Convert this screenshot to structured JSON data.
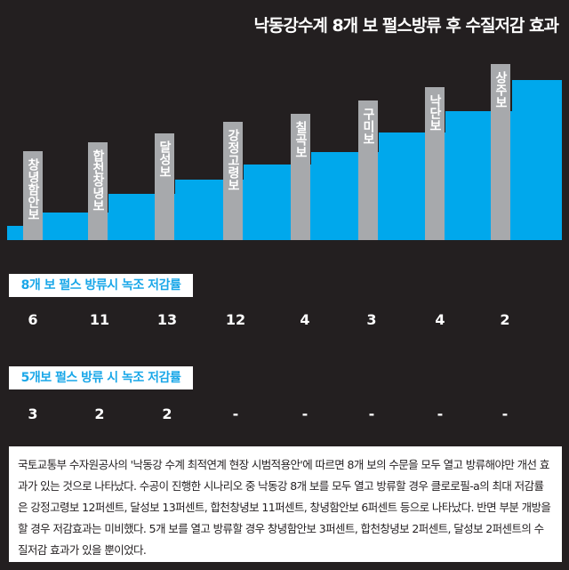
{
  "title": "낙동강수계 8개 보 펄스방류 후 수질저감 효과",
  "weirs": [
    "창녕함안보",
    "합천창녕보",
    "달성보",
    "강정고령보",
    "칠곡보",
    "구미보",
    "낙단보",
    "상주보"
  ],
  "rows": [
    {
      "label": "8개 보 펄스 방류시 녹조 저감률",
      "values": [
        "6",
        "11",
        "13",
        "12",
        "4",
        "3",
        "4",
        "2"
      ]
    },
    {
      "label": "5개보 펄스 방류 시 녹조 저감률",
      "values": [
        "3",
        "2",
        "2",
        "-",
        "-",
        "-",
        "-",
        "-"
      ]
    }
  ],
  "note": "국토교통부 수자원공사의 '낙동강 수계 최적연계 현장 시범적용안'에 따르면 8개 보의 수문을 모두 열고 방류해야만 개선 효과가 있는 것으로 나타났다. 수공이 진행한 시나리오 중 낙동강 8개 보를 모두 열고 방류할 경우 클로로필-a의 최대 저감률은 강정고령보 12퍼센트, 달성보 13퍼센트, 합천창녕보 11퍼센트, 창녕함안보 6퍼센트 등으로 나타났다. 반면 부분 개방을 할 경우 저감효과는 미비했다. 5개 보를 열고 방류할 경우 창녕함안보 3퍼센트, 합천창녕보 2퍼센트, 달성보 2퍼센트의 수질저감 효과가 있을 뿐이었다."
}
